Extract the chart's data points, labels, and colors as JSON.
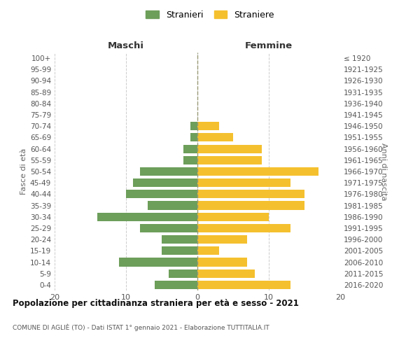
{
  "age_groups": [
    "100+",
    "95-99",
    "90-94",
    "85-89",
    "80-84",
    "75-79",
    "70-74",
    "65-69",
    "60-64",
    "55-59",
    "50-54",
    "45-49",
    "40-44",
    "35-39",
    "30-34",
    "25-29",
    "20-24",
    "15-19",
    "10-14",
    "5-9",
    "0-4"
  ],
  "birth_years": [
    "≤ 1920",
    "1921-1925",
    "1926-1930",
    "1931-1935",
    "1936-1940",
    "1941-1945",
    "1946-1950",
    "1951-1955",
    "1956-1960",
    "1961-1965",
    "1966-1970",
    "1971-1975",
    "1976-1980",
    "1981-1985",
    "1986-1990",
    "1991-1995",
    "1996-2000",
    "2001-2005",
    "2006-2010",
    "2011-2015",
    "2016-2020"
  ],
  "males": [
    0,
    0,
    0,
    0,
    0,
    0,
    1,
    1,
    2,
    2,
    8,
    9,
    10,
    7,
    14,
    8,
    5,
    5,
    11,
    4,
    6
  ],
  "females": [
    0,
    0,
    0,
    0,
    0,
    0,
    3,
    5,
    9,
    9,
    17,
    13,
    15,
    15,
    10,
    13,
    7,
    3,
    7,
    8,
    13
  ],
  "male_color": "#6d9e5a",
  "female_color": "#f5c02e",
  "male_label": "Stranieri",
  "female_label": "Straniere",
  "title": "Popolazione per cittadinanza straniera per età e sesso - 2021",
  "subtitle": "COMUNE DI AGLIÈ (TO) - Dati ISTAT 1° gennaio 2021 - Elaborazione TUTTITALIA.IT",
  "xlabel_left": "Maschi",
  "xlabel_right": "Femmine",
  "ylabel_left": "Fasce di età",
  "ylabel_right": "Anni di nascita",
  "xlim": 20,
  "background_color": "#ffffff",
  "grid_color": "#cccccc",
  "dashed_line_color": "#999977"
}
